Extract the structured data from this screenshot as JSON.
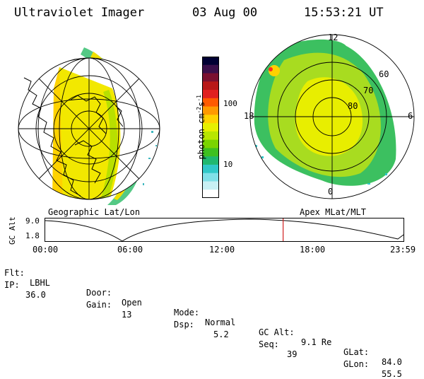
{
  "header": {
    "title": "Ultraviolet Imager",
    "date": "03 Aug 00",
    "time": "15:53:21 UT"
  },
  "left_panel": {
    "caption": "Geographic Lat/Lon"
  },
  "right_panel": {
    "caption": "Apex MLat/MLT",
    "mlt_labels": [
      "12",
      "18",
      "6",
      "0"
    ],
    "lat_labels": [
      "60",
      "70",
      "80"
    ]
  },
  "colorbar": {
    "unit_label": "photon cm",
    "unit_sup1": "-2",
    "unit_mid": "s",
    "unit_sup2": "-1",
    "tick_labels": [
      "100",
      "10"
    ],
    "colors": [
      "#000033",
      "#3a0f4a",
      "#7a1030",
      "#b81818",
      "#e02020",
      "#ff5a00",
      "#ff9a00",
      "#ffd200",
      "#e6f000",
      "#b8e600",
      "#7ad400",
      "#3ec020",
      "#20b870",
      "#30c8c8",
      "#80e0e8",
      "#c8f0f4",
      "#ffffff"
    ]
  },
  "timeline": {
    "axis_label": "GC Alt",
    "y_ticks": [
      "9.0",
      "1.8"
    ],
    "x_ticks": [
      "00:00",
      "06:00",
      "12:00",
      "18:00",
      "23:59"
    ],
    "current_time_fraction": 0.664
  },
  "info": [
    [
      {
        "k": "Flt:",
        "v": "LBHL"
      },
      {
        "k": "Door:",
        "v": "Open"
      },
      {
        "k": "Mode:",
        "v": "Normal"
      },
      {
        "k": "GC Alt:",
        "v": "9.1 Re"
      },
      {
        "k": "GLat:",
        "v": "84.0"
      }
    ],
    [
      {
        "k": "IP:",
        "v": "36.0"
      },
      {
        "k": "Gain:",
        "v": "13"
      },
      {
        "k": "Dsp:",
        "v": "5.2"
      },
      {
        "k": "Seq:",
        "v": "39"
      },
      {
        "k": "GLon:",
        "v": "55.5"
      }
    ]
  ]
}
